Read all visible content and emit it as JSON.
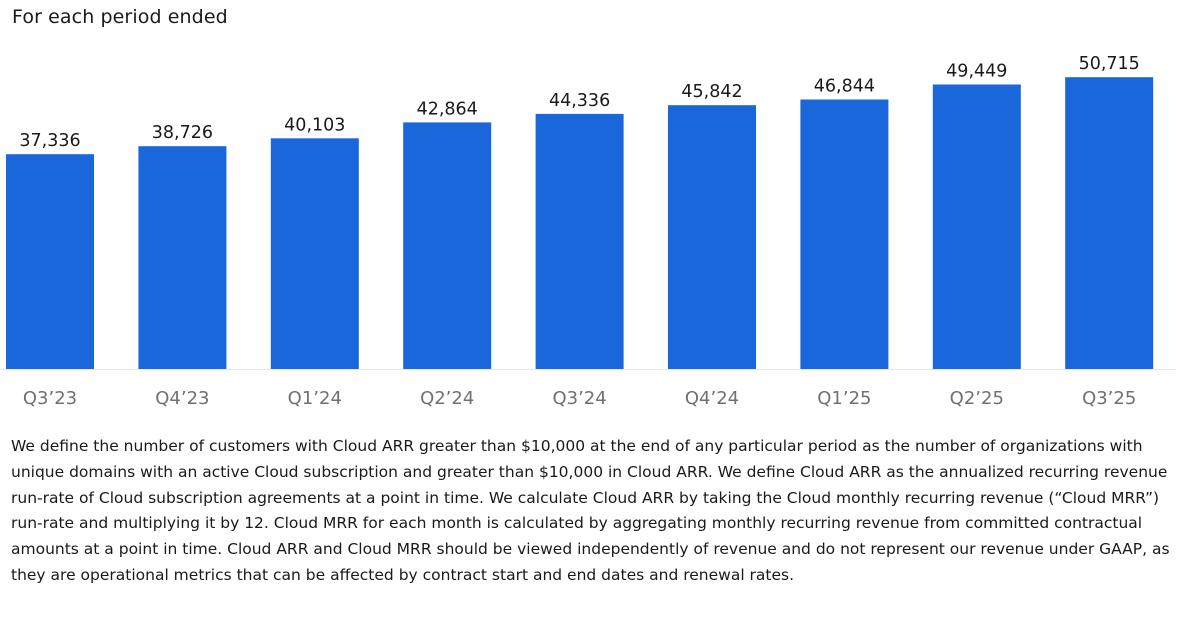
{
  "subtitle": "For each period ended",
  "footnote": "We define the number of customers with Cloud ARR greater than $10,000 at the end of any particular period as the number of organizations with unique domains with an active Cloud subscription and greater than $10,000 in Cloud ARR. We define Cloud ARR as the annualized recurring revenue run-rate of Cloud subscription agreements at a point in time. We calculate Cloud ARR by taking the Cloud monthly recurring revenue (“Cloud MRR”) run-rate and multiplying it by 12. Cloud MRR for each month is calculated by aggregating monthly recurring revenue from committed contractual amounts at a point in time. Cloud ARR and Cloud MRR should be viewed independently of revenue and do not represent our revenue under GAAP, as they are operational metrics that can be affected by contract start and end dates and renewal rates.",
  "colors": {
    "bar": "#1a66db",
    "baseline": "#e6e6e6"
  },
  "chart_data": {
    "type": "bar",
    "title": "",
    "subtitle": "For each period ended",
    "categories": [
      "Q3’23",
      "Q4’23",
      "Q1’24",
      "Q2’24",
      "Q3’24",
      "Q4’24",
      "Q1’25",
      "Q2’25",
      "Q3’25"
    ],
    "values": [
      37336,
      38726,
      40103,
      42864,
      44336,
      45842,
      46844,
      49449,
      50715
    ],
    "value_labels": [
      "37,336",
      "38,726",
      "40,103",
      "42,864",
      "44,336",
      "45,842",
      "46,844",
      "49,449",
      "50,715"
    ],
    "xlabel": "",
    "ylabel": "",
    "ylim": [
      0,
      53000
    ],
    "grid": false,
    "legend": "none"
  }
}
